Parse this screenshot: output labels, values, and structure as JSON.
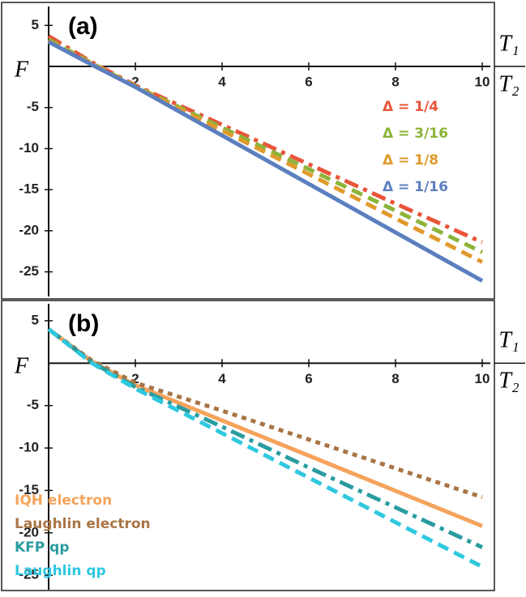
{
  "chart_data": [
    {
      "type": "line",
      "panel_label": "(a)",
      "y_label": "F",
      "x_label_numerator": "T₁",
      "x_label_denominator": "T₂",
      "x": [
        0,
        1,
        2,
        4,
        6,
        8,
        10
      ],
      "series": [
        {
          "name": "Δ = 1/4",
          "color": "#e8553a",
          "style": "dashdot",
          "values": [
            3.7,
            0.5,
            -2.3,
            -7.1,
            -11.9,
            -16.7,
            -21.4
          ]
        },
        {
          "name": "Δ = 3/16",
          "color": "#8db33a",
          "style": "dashed",
          "values": [
            3.3,
            0.4,
            -2.4,
            -7.45,
            -12.5,
            -17.55,
            -22.6
          ]
        },
        {
          "name": "Δ = 1/8",
          "color": "#e09a2c",
          "style": "dashed",
          "values": [
            3.1,
            0.3,
            -2.45,
            -7.8,
            -13.1,
            -18.5,
            -23.8
          ]
        },
        {
          "name": "Δ = 1/16",
          "color": "#5b7fbf",
          "style": "solid",
          "values": [
            3.0,
            0.2,
            -2.5,
            -8.4,
            -14.3,
            -20.2,
            -26.1
          ]
        }
      ],
      "xlim": [
        0,
        10
      ],
      "ylim": [
        -28,
        7.3
      ],
      "xticks": [
        2,
        4,
        6,
        8,
        10
      ],
      "yticks": [
        5,
        -5,
        -10,
        -15,
        -20,
        -25
      ],
      "legend": "right"
    },
    {
      "type": "line",
      "panel_label": "(b)",
      "y_label": "F",
      "x_label_numerator": "T₁",
      "x_label_denominator": "T₂",
      "x": [
        0,
        1,
        2,
        4,
        6,
        8,
        10
      ],
      "series": [
        {
          "name": "IQH electron",
          "color": "#f5a35c",
          "style": "solid",
          "values": [
            4,
            0.2,
            -2.6,
            -6.75,
            -10.9,
            -15.05,
            -19.2
          ]
        },
        {
          "name": "Laughlin electron",
          "color": "#a97545",
          "style": "dotted",
          "values": [
            4,
            0.3,
            -2.3,
            -5.6,
            -9.0,
            -12.4,
            -15.8
          ]
        },
        {
          "name": "KFP qp",
          "color": "#2a9ca0",
          "style": "dashdot",
          "values": [
            4,
            0.1,
            -2.8,
            -7.5,
            -12.3,
            -17.0,
            -21.7
          ]
        },
        {
          "name": "Laughlin qp",
          "color": "#2ec8e0",
          "style": "dashed",
          "values": [
            4,
            0.0,
            -3.0,
            -8.25,
            -13.5,
            -18.75,
            -24
          ]
        }
      ],
      "xlim": [
        0,
        10
      ],
      "ylim": [
        -26.7,
        7
      ],
      "xticks": [
        2,
        4,
        6,
        8,
        10
      ],
      "yticks": [
        5,
        -5,
        -10,
        -15,
        -20,
        -25
      ],
      "legend": "lower left"
    }
  ]
}
